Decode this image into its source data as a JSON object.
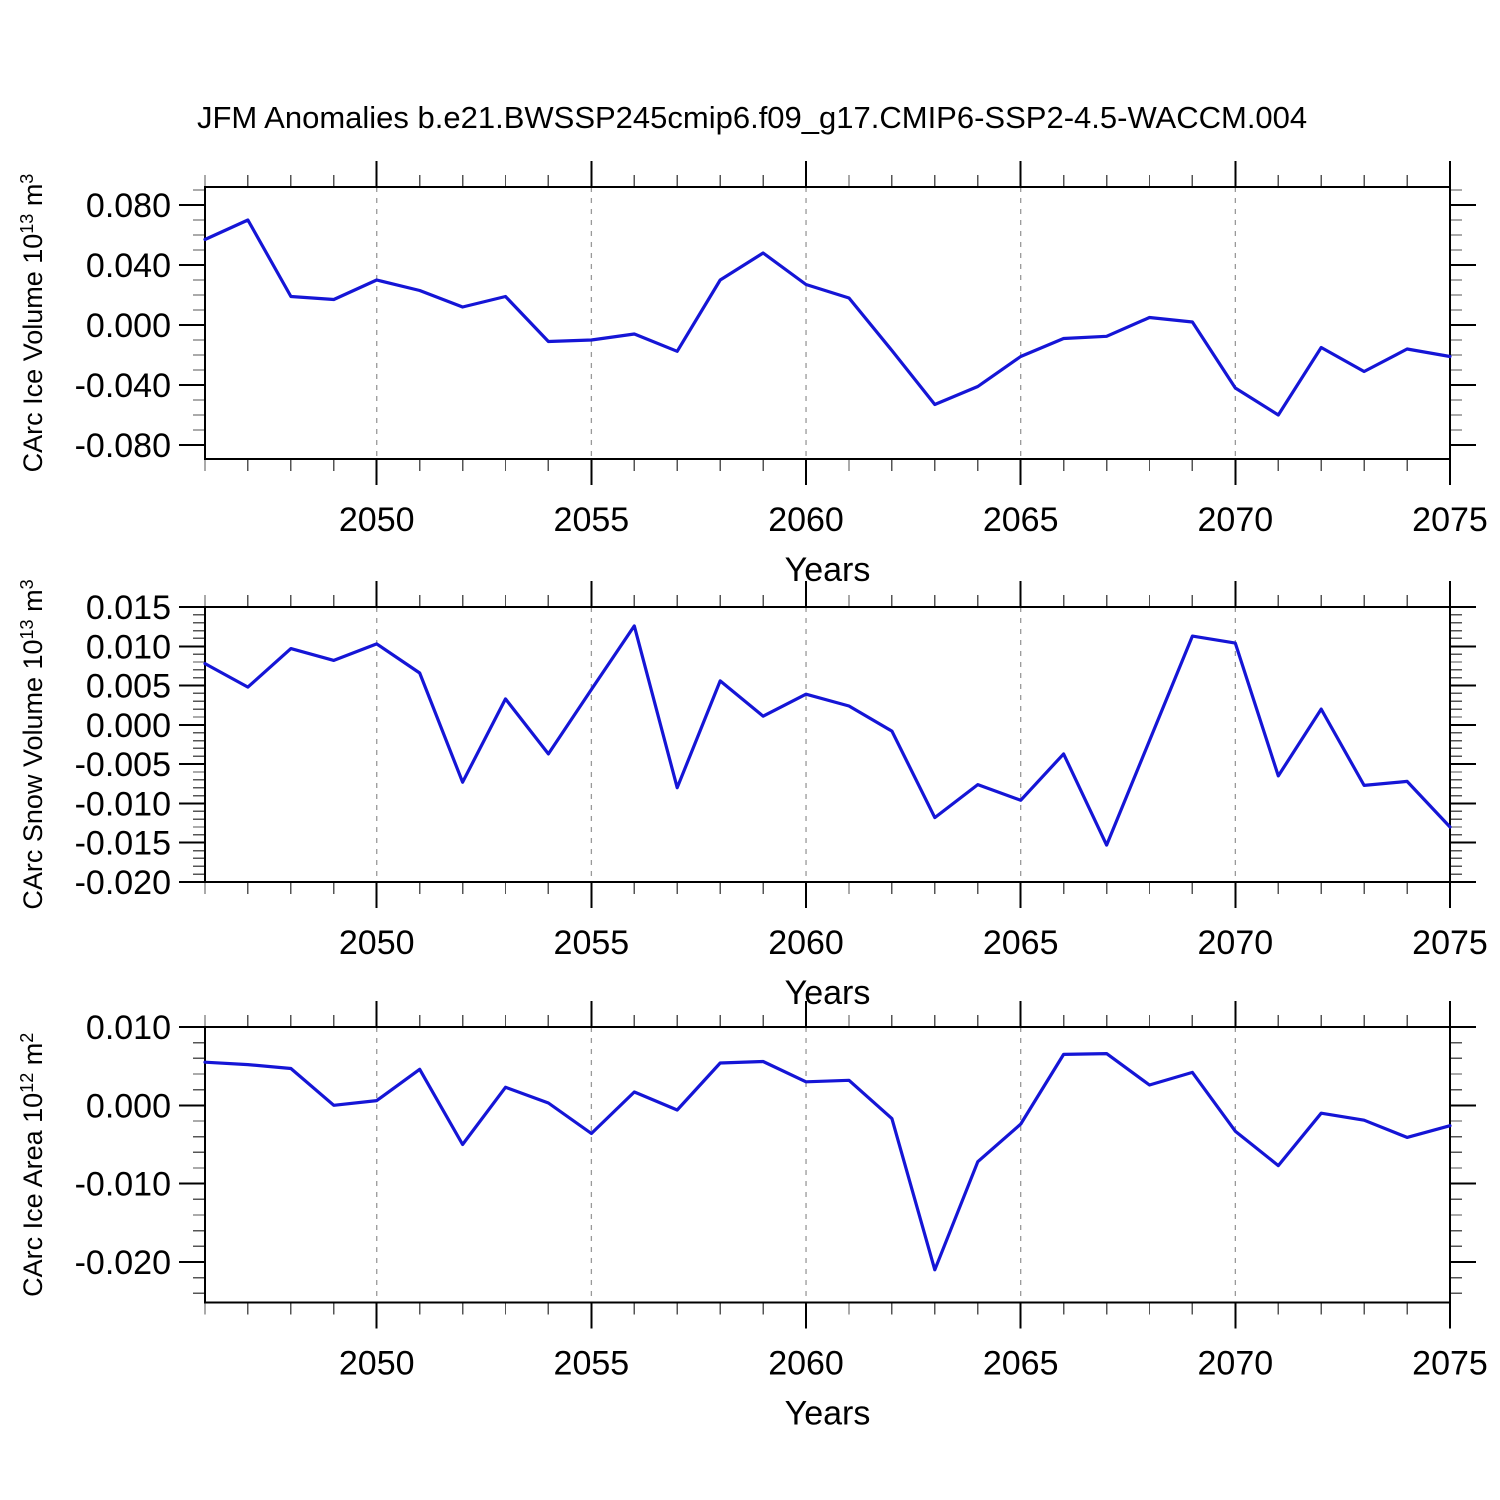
{
  "title": "JFM Anomalies b.e21.BWSSP245cmip6.f09_g17.CMIP6-SSP2-4.5-WACCM.004",
  "colors": {
    "line": "#1515d6",
    "axis": "#000000",
    "minor_tick": "#555555",
    "gridline": "#999999",
    "background": "#ffffff",
    "text": "#000000"
  },
  "chart_data": {
    "type": "line",
    "title": "JFM Anomalies b.e21.BWSSP245cmip6.f09_g17.CMIP6-SSP2-4.5-WACCM.004",
    "xlabel": "Years",
    "x_range": [
      2046,
      2075
    ],
    "x": [
      2046,
      2047,
      2048,
      2049,
      2050,
      2051,
      2052,
      2053,
      2054,
      2055,
      2056,
      2057,
      2058,
      2059,
      2060,
      2061,
      2062,
      2063,
      2064,
      2065,
      2066,
      2067,
      2068,
      2069,
      2070,
      2071,
      2072,
      2073,
      2074,
      2075
    ],
    "x_major_ticks": [
      2050,
      2055,
      2060,
      2065,
      2070,
      2075
    ],
    "x_tick_labels": [
      "2050",
      "2055",
      "2060",
      "2065",
      "2070",
      "2075"
    ],
    "x_minor_step": 1,
    "grid": "vertical dashed gridlines at x major ticks, no horizontal gridlines",
    "legend": "none",
    "line_color": "#1515d6",
    "panels": [
      {
        "name": "ice-volume",
        "ylabel": "CArc Ice Volume 10^13 m^3",
        "ylabel_segments": [
          {
            "text": "CArc Ice Volume 10"
          },
          {
            "text": "13",
            "sup": true
          },
          {
            "text": " m"
          },
          {
            "text": "3",
            "sup": true
          }
        ],
        "ylim": [
          -0.0893,
          0.092
        ],
        "y_major_ticks": [
          0.08,
          0.04,
          0.0,
          -0.04,
          -0.08
        ],
        "y_tick_labels": [
          "0.080",
          "0.040",
          "0.000",
          "-0.040",
          "-0.080"
        ],
        "y_minor_step": 0.01,
        "values": [
          0.057,
          0.07,
          0.019,
          0.017,
          0.03,
          0.023,
          0.012,
          0.019,
          -0.011,
          -0.01,
          -0.006,
          -0.0175,
          0.03,
          0.048,
          0.027,
          0.018,
          -0.017,
          -0.053,
          -0.041,
          -0.021,
          -0.009,
          -0.0075,
          0.005,
          0.002,
          -0.042,
          -0.06,
          -0.015,
          -0.031,
          -0.016,
          -0.021
        ]
      },
      {
        "name": "snow-volume",
        "ylabel": "CArc Snow Volume 10^13 m^3",
        "ylabel_segments": [
          {
            "text": "CArc Snow Volume 10"
          },
          {
            "text": "13",
            "sup": true
          },
          {
            "text": " m"
          },
          {
            "text": "3",
            "sup": true
          }
        ],
        "ylim": [
          -0.02,
          0.015
        ],
        "y_major_ticks": [
          0.015,
          0.01,
          0.005,
          0.0,
          -0.005,
          -0.01,
          -0.015,
          -0.02
        ],
        "y_tick_labels": [
          "0.015",
          "0.010",
          "0.005",
          "0.000",
          "-0.005",
          "-0.010",
          "-0.015",
          "-0.020"
        ],
        "y_minor_step": 0.001,
        "values": [
          0.0078,
          0.0048,
          0.0097,
          0.0082,
          0.0103,
          0.0066,
          -0.0073,
          0.0033,
          -0.0037,
          0.0045,
          0.0126,
          -0.008,
          0.0056,
          0.0011,
          0.0039,
          0.0024,
          -0.0008,
          -0.0118,
          -0.0076,
          -0.0096,
          -0.0037,
          -0.0153,
          -0.002,
          0.0113,
          0.0104,
          -0.0065,
          0.002,
          -0.0077,
          -0.0072,
          -0.013
        ]
      },
      {
        "name": "ice-area",
        "ylabel": "CArc Ice Area 10^12 m^2",
        "ylabel_segments": [
          {
            "text": "CArc Ice Area 10"
          },
          {
            "text": "12",
            "sup": true
          },
          {
            "text": " m"
          },
          {
            "text": "2",
            "sup": true
          }
        ],
        "ylim": [
          -0.0252,
          0.01
        ],
        "y_major_ticks": [
          0.01,
          0.0,
          -0.01,
          -0.02
        ],
        "y_tick_labels": [
          "0.010",
          "0.000",
          "-0.010",
          "-0.020"
        ],
        "y_minor_step": 0.002,
        "values": [
          0.0055,
          0.0052,
          0.0047,
          0.0,
          0.0006,
          0.0046,
          -0.005,
          0.0023,
          0.0003,
          -0.0036,
          0.0017,
          -0.0006,
          0.0054,
          0.0056,
          0.003,
          0.0032,
          -0.0017,
          -0.021,
          -0.0072,
          -0.0024,
          0.0065,
          0.0066,
          0.0026,
          0.0042,
          -0.0033,
          -0.0077,
          -0.001,
          -0.0019,
          -0.0041,
          -0.0026
        ]
      }
    ]
  }
}
